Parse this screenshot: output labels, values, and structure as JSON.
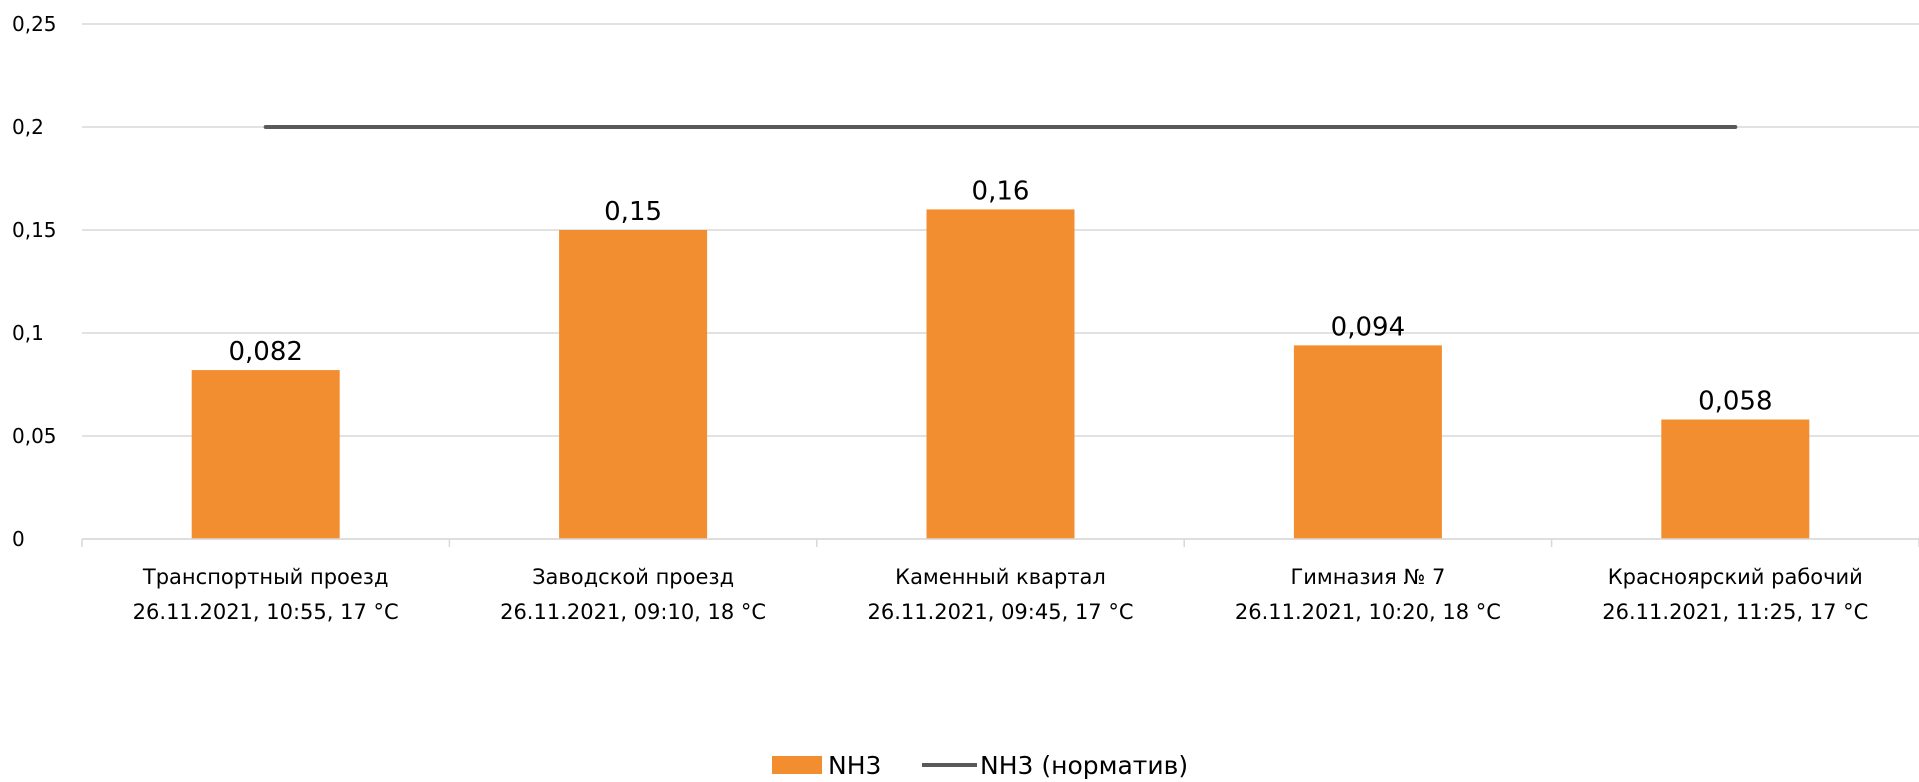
{
  "chart_data": {
    "type": "bar",
    "categories": [
      [
        "Транспортный проезд",
        "26.11.2021, 10:55, 17 °C"
      ],
      [
        "Заводской проезд",
        "26.11.2021, 09:10, 18 °C"
      ],
      [
        "Каменный квартал",
        "26.11.2021, 09:45, 17 °C"
      ],
      [
        "Гимназия № 7",
        "26.11.2021, 10:20, 18 °C"
      ],
      [
        "Красноярский рабочий",
        "26.11.2021, 11:25, 17 °C"
      ]
    ],
    "series": [
      {
        "name": "NH3",
        "type": "bar",
        "values": [
          0.082,
          0.15,
          0.16,
          0.094,
          0.058
        ],
        "labels": [
          "0,082",
          "0,15",
          "0,16",
          "0,094",
          "0,058"
        ],
        "color": "#F28E2F"
      },
      {
        "name": "NH3 (норматив)",
        "type": "line",
        "values": [
          0.2,
          0.2,
          0.2,
          0.2,
          0.2
        ],
        "color": "#595959"
      }
    ],
    "ylim": [
      0,
      0.25
    ],
    "yticks": [
      0,
      0.05,
      0.1,
      0.15,
      0.2,
      0.25
    ],
    "ytick_labels": [
      "0",
      "0,05",
      "0,1",
      "0,15",
      "0,2",
      "0,25"
    ],
    "grid": true,
    "gridline_color": "#D9D9D9",
    "legend_position": "bottom"
  }
}
